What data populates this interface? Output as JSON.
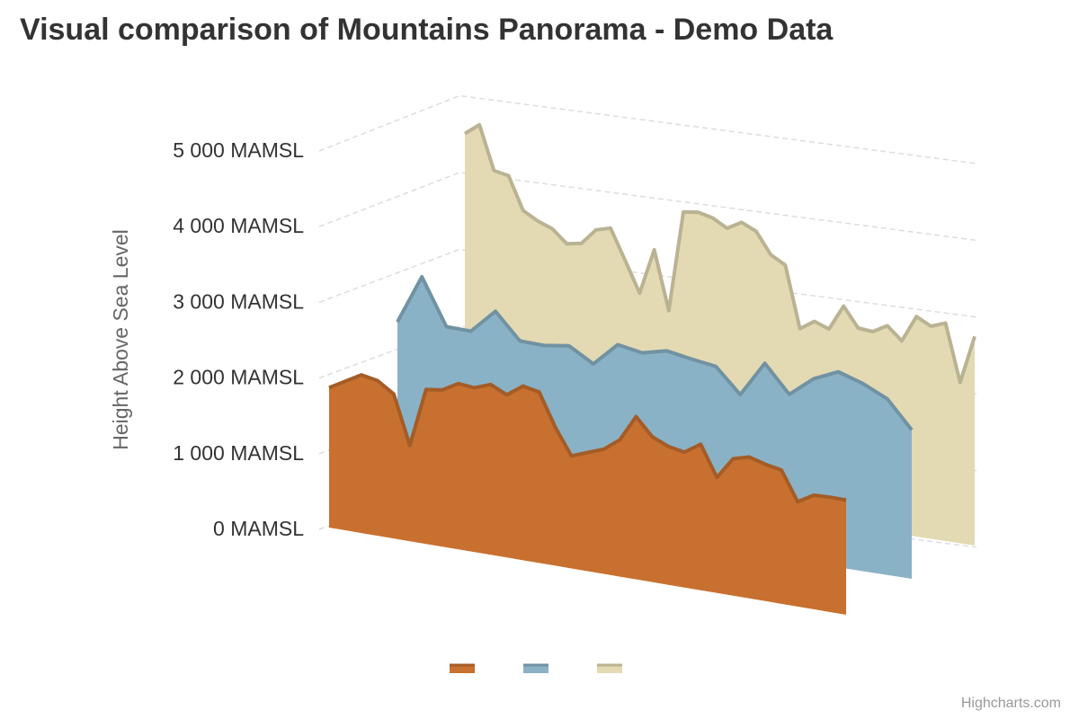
{
  "chart_data": {
    "type": "area",
    "title": "Visual comparison of Mountains Panorama - Demo Data",
    "ylabel": "Height Above Sea Level",
    "y_tick_labels": [
      "0 MAMSL",
      "1 000 MAMSL",
      "2 000 MAMSL",
      "3 000 MAMSL",
      "4 000 MAMSL",
      "5 000 MAMSL"
    ],
    "y_ticks": [
      0,
      1000,
      2000,
      3000,
      4000,
      5000
    ],
    "ylim": [
      0,
      5000
    ],
    "grid": true,
    "legend": "bottom-center",
    "three_d": true,
    "series": [
      {
        "color": "#c8702f",
        "values": [
          1840,
          1960,
          2080,
          2040,
          1900,
          1260,
          2030,
          2060,
          2180,
          2160,
          2240,
          2140,
          2290,
          2250,
          1820,
          1480,
          1560,
          1640,
          1800,
          2140,
          1910,
          1820,
          1780,
          1920,
          1520,
          1800,
          1860,
          1800,
          1760,
          1380,
          1500,
          1510,
          1510
        ]
      },
      {
        "color": "#8ab2c6",
        "values": [
          2460,
          3140,
          2500,
          2490,
          2820,
          2460,
          2450,
          2500,
          2300,
          2620,
          2560,
          2640,
          2580,
          2530,
          2190,
          2680,
          2300,
          2570,
          2720,
          2610,
          2450,
          2070
        ]
      },
      {
        "color": "#e3dab3",
        "values": [
          4900,
          5060,
          4420,
          4380,
          3900,
          3780,
          3700,
          3510,
          3550,
          3780,
          3840,
          3400,
          2950,
          3620,
          2760,
          4240,
          4270,
          4220,
          4100,
          4220,
          4120,
          3810,
          3690,
          2790,
          2930,
          2850,
          3220,
          2930,
          2910,
          3030,
          2840,
          3230,
          3120,
          3200,
          2360,
          3070
        ]
      }
    ]
  },
  "credits": "Highcharts.com"
}
